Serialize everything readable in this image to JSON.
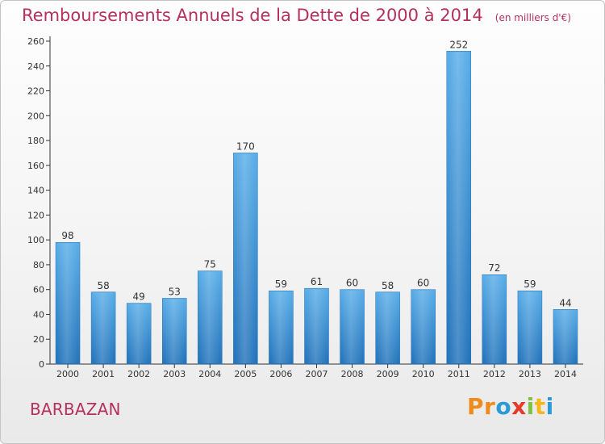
{
  "header": {
    "title": "Remboursements Annuels de la Dette de 2000 à 2014",
    "unit": "(en milliers d'€)"
  },
  "commune": "BARBAZAN",
  "brand": {
    "text": "Proxiti",
    "colors": [
      "#f08a1a",
      "#f08a1a",
      "#2a9ad8",
      "#e83a2a",
      "#7fc241",
      "#f7b71a",
      "#2a9ad8"
    ]
  },
  "chart_data": {
    "type": "bar",
    "title": "Remboursements Annuels de la Dette de 2000 à 2014",
    "subtitle": "(en milliers d'€)",
    "xlabel": "",
    "ylabel": "",
    "categories": [
      "2000",
      "2001",
      "2002",
      "2003",
      "2004",
      "2005",
      "2006",
      "2007",
      "2008",
      "2009",
      "2010",
      "2011",
      "2012",
      "2013",
      "2014"
    ],
    "values": [
      98,
      58,
      49,
      53,
      75,
      170,
      59,
      61,
      60,
      58,
      60,
      252,
      72,
      59,
      44
    ],
    "ylim": [
      0,
      260
    ],
    "yticks": [
      0,
      20,
      40,
      60,
      80,
      100,
      120,
      140,
      160,
      180,
      200,
      220,
      240,
      260
    ],
    "grid": false,
    "legend": "none",
    "bar_color": "#3a8fd6",
    "data_labels": true
  }
}
